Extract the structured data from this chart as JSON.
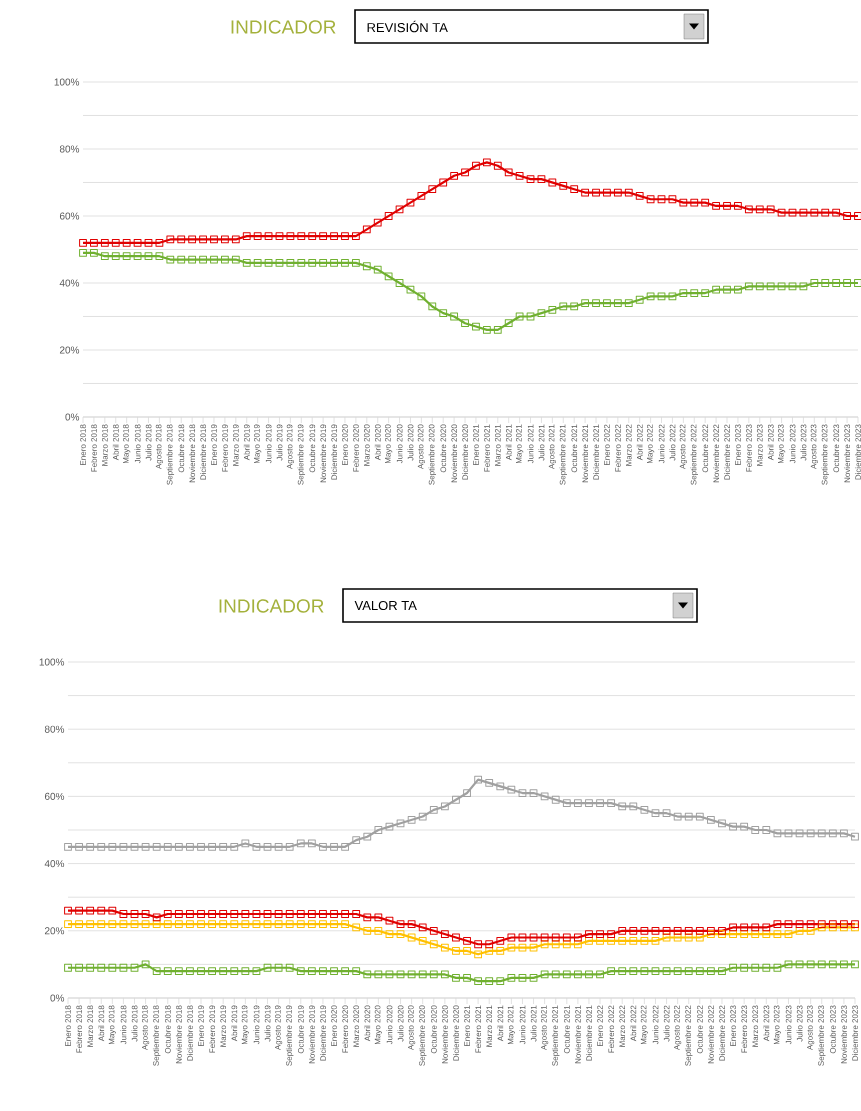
{
  "chart_data": [
    {
      "type": "line",
      "title": "INDICADOR",
      "subtitle": "REVISIÓN TA",
      "categories": [
        "Enero 2018",
        "Febrero 2018",
        "Marzo 2018",
        "Abril 2018",
        "Mayo 2018",
        "Junio 2018",
        "Julio 2018",
        "Agosto 2018",
        "Septiembre 2018",
        "Octubre 2018",
        "Noviembre 2018",
        "Diciembre 2018",
        "Enero 2019",
        "Febrero 2019",
        "Marzo 2019",
        "Abril 2019",
        "Mayo 2019",
        "Junio 2019",
        "Julio 2019",
        "Agosto 2019",
        "Septiembre 2019",
        "Octubre 2019",
        "Noviembre 2019",
        "Diciembre 2019",
        "Enero 2020",
        "Febrero 2020",
        "Marzo 2020",
        "Abril 2020",
        "Mayo 2020",
        "Junio 2020",
        "Julio 2020",
        "Agosto 2020",
        "Septiembre 2020",
        "Octubre 2020",
        "Noviembre 2020",
        "Diciembre 2020",
        "Enero 2021",
        "Febrero 2021",
        "Marzo 2021",
        "Abril 2021",
        "Mayo 2021",
        "Junio 2021",
        "Julio 2021",
        "Agosto 2021",
        "Septiembre 2021",
        "Octubre 2021",
        "Noviembre 2021",
        "Diciembre 2021",
        "Enero 2022",
        "Febrero 2022",
        "Marzo 2022",
        "Abril 2022",
        "Mayo 2022",
        "Junio 2022",
        "Julio 2022",
        "Agosto 2022",
        "Septiembre 2022",
        "Octubre 2022",
        "Noviembre 2022",
        "Diciembre 2022",
        "Enero 2023",
        "Febrero 2023",
        "Marzo 2023",
        "Abril 2023",
        "Mayo 2023",
        "Junio 2023",
        "Julio 2023",
        "Agosto 2023",
        "Septiembre 2023",
        "Octubre 2023",
        "Noviembre 2023",
        "Diciembre 2023"
      ],
      "series": [
        {
          "color": "#e00000",
          "values": [
            52,
            52,
            52,
            52,
            52,
            52,
            52,
            52,
            53,
            53,
            53,
            53,
            53,
            53,
            53,
            54,
            54,
            54,
            54,
            54,
            54,
            54,
            54,
            54,
            54,
            54,
            56,
            58,
            60,
            62,
            64,
            66,
            68,
            70,
            72,
            73,
            75,
            76,
            75,
            73,
            72,
            71,
            71,
            70,
            69,
            68,
            67,
            67,
            67,
            67,
            67,
            66,
            65,
            65,
            65,
            64,
            64,
            64,
            63,
            63,
            63,
            62,
            62,
            62,
            61,
            61,
            61,
            61,
            61,
            61,
            60,
            60
          ]
        },
        {
          "color": "#70b030",
          "values": [
            49,
            49,
            48,
            48,
            48,
            48,
            48,
            48,
            47,
            47,
            47,
            47,
            47,
            47,
            47,
            46,
            46,
            46,
            46,
            46,
            46,
            46,
            46,
            46,
            46,
            46,
            45,
            44,
            42,
            40,
            38,
            36,
            33,
            31,
            30,
            28,
            27,
            26,
            26,
            28,
            30,
            30,
            31,
            32,
            33,
            33,
            34,
            34,
            34,
            34,
            34,
            35,
            36,
            36,
            36,
            37,
            37,
            37,
            38,
            38,
            38,
            39,
            39,
            39,
            39,
            39,
            39,
            40,
            40,
            40,
            40,
            40
          ]
        }
      ],
      "ylim": [
        0,
        100
      ],
      "yticks": [
        {
          "value": 0,
          "label": "0%"
        },
        {
          "value": 10,
          "label": null
        },
        {
          "value": 20,
          "label": "20%"
        },
        {
          "value": 30,
          "label": null
        },
        {
          "value": 40,
          "label": "40%"
        },
        {
          "value": 50,
          "label": null
        },
        {
          "value": 60,
          "label": "60%"
        },
        {
          "value": 70,
          "label": null
        },
        {
          "value": 80,
          "label": "80%"
        },
        {
          "value": 90,
          "label": null
        },
        {
          "value": 100,
          "label": "100%"
        }
      ],
      "grid": "y",
      "marker": "square"
    },
    {
      "type": "line",
      "title": "INDICADOR",
      "subtitle": "VALOR TA",
      "categories": [
        "Enero 2018",
        "Febrero 2018",
        "Marzo 2018",
        "Abril 2018",
        "Mayo 2018",
        "Junio 2018",
        "Julio 2018",
        "Agosto 2018",
        "Septiembre 2018",
        "Octubre 2018",
        "Noviembre 2018",
        "Diciembre 2018",
        "Enero 2019",
        "Febrero 2019",
        "Marzo 2019",
        "Abril 2019",
        "Mayo 2019",
        "Junio 2019",
        "Julio 2019",
        "Agosto 2019",
        "Septiembre 2019",
        "Octubre 2019",
        "Noviembre 2019",
        "Diciembre 2019",
        "Enero 2020",
        "Febrero 2020",
        "Marzo 2020",
        "Abril 2020",
        "Mayo 2020",
        "Junio 2020",
        "Julio 2020",
        "Agosto 2020",
        "Septiembre 2020",
        "Octubre 2020",
        "Noviembre 2020",
        "Diciembre 2020",
        "Enero 2021",
        "Febrero 2021",
        "Marzo 2021",
        "Abril 2021",
        "Mayo 2021",
        "Junio 2021",
        "Julio 2021",
        "Agosto 2021",
        "Septiembre 2021",
        "Octubre 2021",
        "Noviembre 2021",
        "Diciembre 2021",
        "Enero 2022",
        "Febrero 2022",
        "Marzo 2022",
        "Abril 2022",
        "Mayo 2022",
        "Junio 2022",
        "Julio 2022",
        "Agosto 2022",
        "Septiembre 2022",
        "Octubre 2022",
        "Noviembre 2022",
        "Diciembre 2022",
        "Enero 2023",
        "Febrero 2023",
        "Marzo 2023",
        "Abril 2023",
        "Mayo 2023",
        "Junio 2023",
        "Julio 2023",
        "Agosto 2023",
        "Septiembre 2023",
        "Octubre 2023",
        "Noviembre 2023",
        "Diciembre 2023"
      ],
      "series": [
        {
          "color": "#a0a0a0",
          "values": [
            45,
            45,
            45,
            45,
            45,
            45,
            45,
            45,
            45,
            45,
            45,
            45,
            45,
            45,
            45,
            45,
            46,
            45,
            45,
            45,
            45,
            46,
            46,
            45,
            45,
            45,
            47,
            48,
            50,
            51,
            52,
            53,
            54,
            56,
            57,
            59,
            61,
            65,
            64,
            63,
            62,
            61,
            61,
            60,
            59,
            58,
            58,
            58,
            58,
            58,
            57,
            57,
            56,
            55,
            55,
            54,
            54,
            54,
            53,
            52,
            51,
            51,
            50,
            50,
            49,
            49,
            49,
            49,
            49,
            49,
            49,
            48
          ]
        },
        {
          "color": "#ffc000",
          "values": [
            22,
            22,
            22,
            22,
            22,
            22,
            22,
            22,
            22,
            22,
            22,
            22,
            22,
            22,
            22,
            22,
            22,
            22,
            22,
            22,
            22,
            22,
            22,
            22,
            22,
            22,
            21,
            20,
            20,
            19,
            19,
            18,
            17,
            16,
            15,
            14,
            14,
            13,
            14,
            14,
            15,
            15,
            15,
            16,
            16,
            16,
            16,
            17,
            17,
            17,
            17,
            17,
            17,
            17,
            18,
            18,
            18,
            18,
            19,
            19,
            19,
            19,
            19,
            19,
            19,
            19,
            20,
            20,
            21,
            21,
            21,
            21
          ]
        },
        {
          "color": "#e00000",
          "values": [
            26,
            26,
            26,
            26,
            26,
            25,
            25,
            25,
            24,
            25,
            25,
            25,
            25,
            25,
            25,
            25,
            25,
            25,
            25,
            25,
            25,
            25,
            25,
            25,
            25,
            25,
            25,
            24,
            24,
            23,
            22,
            22,
            21,
            20,
            19,
            18,
            17,
            16,
            16,
            17,
            18,
            18,
            18,
            18,
            18,
            18,
            18,
            19,
            19,
            19,
            20,
            20,
            20,
            20,
            20,
            20,
            20,
            20,
            20,
            20,
            21,
            21,
            21,
            21,
            22,
            22,
            22,
            22,
            22,
            22,
            22,
            22
          ]
        },
        {
          "color": "#70b030",
          "values": [
            9,
            9,
            9,
            9,
            9,
            9,
            9,
            10,
            8,
            8,
            8,
            8,
            8,
            8,
            8,
            8,
            8,
            8,
            9,
            9,
            9,
            8,
            8,
            8,
            8,
            8,
            8,
            7,
            7,
            7,
            7,
            7,
            7,
            7,
            7,
            6,
            6,
            5,
            5,
            5,
            6,
            6,
            6,
            7,
            7,
            7,
            7,
            7,
            7,
            8,
            8,
            8,
            8,
            8,
            8,
            8,
            8,
            8,
            8,
            8,
            9,
            9,
            9,
            9,
            9,
            10,
            10,
            10,
            10,
            10,
            10,
            10
          ]
        }
      ],
      "ylim": [
        0,
        100
      ],
      "yticks": [
        {
          "value": 0,
          "label": "0%"
        },
        {
          "value": 10,
          "label": null
        },
        {
          "value": 20,
          "label": "20%"
        },
        {
          "value": 30,
          "label": null
        },
        {
          "value": 40,
          "label": "40%"
        },
        {
          "value": 50,
          "label": null
        },
        {
          "value": 60,
          "label": "60%"
        },
        {
          "value": 70,
          "label": null
        },
        {
          "value": 80,
          "label": "80%"
        },
        {
          "value": 90,
          "label": null
        },
        {
          "value": 100,
          "label": "100%"
        }
      ],
      "grid": "y",
      "marker": "square"
    }
  ]
}
